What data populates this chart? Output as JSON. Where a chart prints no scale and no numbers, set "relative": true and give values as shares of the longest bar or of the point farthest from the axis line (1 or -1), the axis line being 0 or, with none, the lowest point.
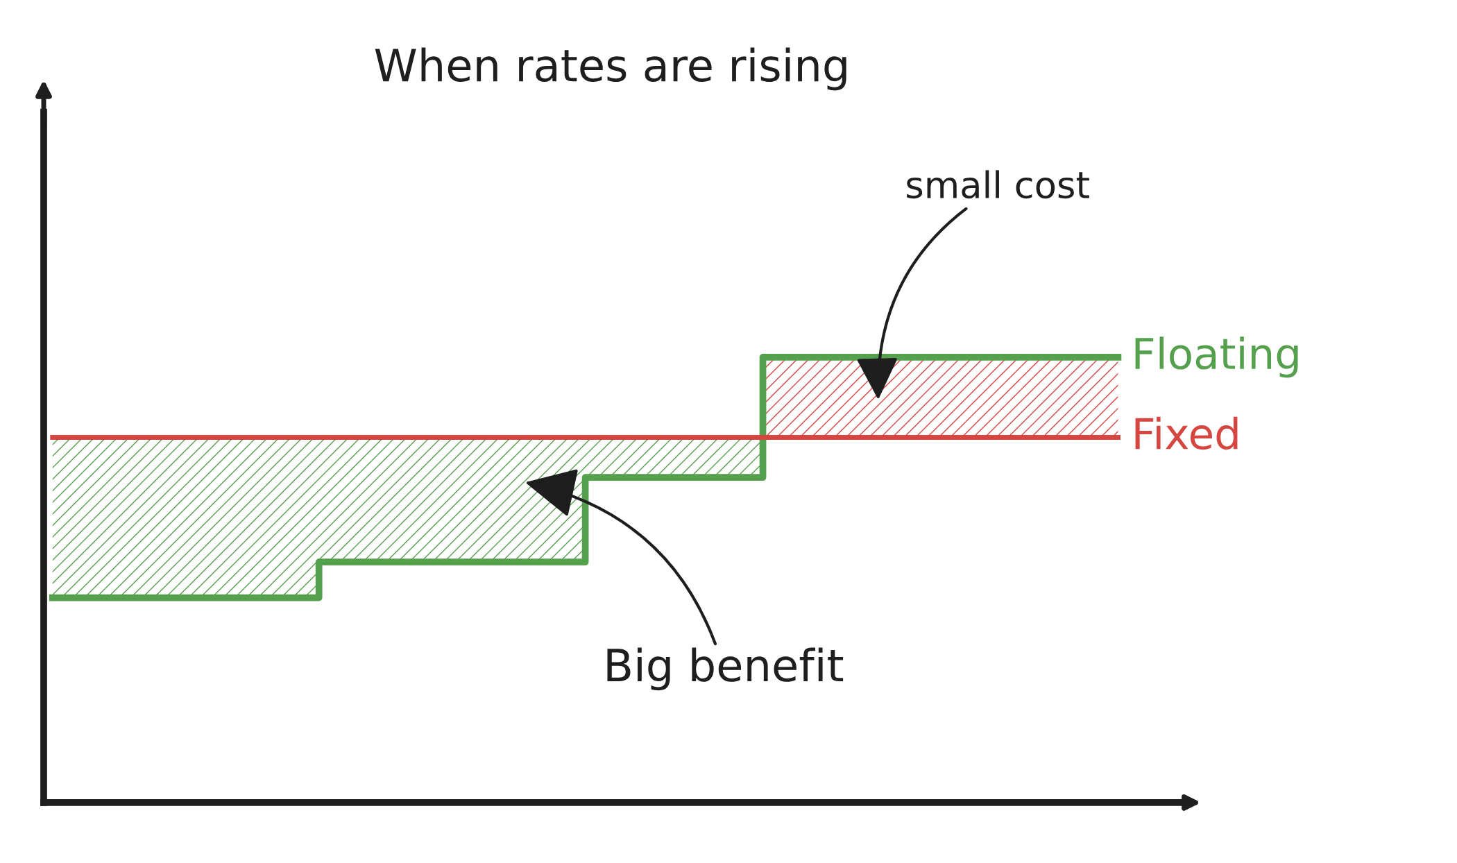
{
  "chart_data": {
    "type": "step",
    "title": "When rates are rising",
    "relative": true,
    "categories": [
      null,
      null,
      null,
      null,
      null,
      null,
      null,
      null,
      null,
      null,
      null,
      null,
      null
    ],
    "series": [
      {
        "name": "Floating",
        "color": "#55a04d",
        "values": [
          0.46,
          0.46,
          0.46,
          0.54,
          0.54,
          0.54,
          0.73,
          0.73,
          1,
          1,
          1,
          1,
          1
        ]
      },
      {
        "name": "Fixed",
        "color": "#d4463f",
        "type": "line",
        "values": [
          0.82,
          0.82,
          0.82,
          0.82,
          0.82,
          0.82,
          0.82,
          0.82,
          0.82,
          0.82,
          0.82,
          0.82,
          0.82
        ]
      }
    ],
    "annotations": [
      "small cost",
      "Big benefit"
    ]
  }
}
